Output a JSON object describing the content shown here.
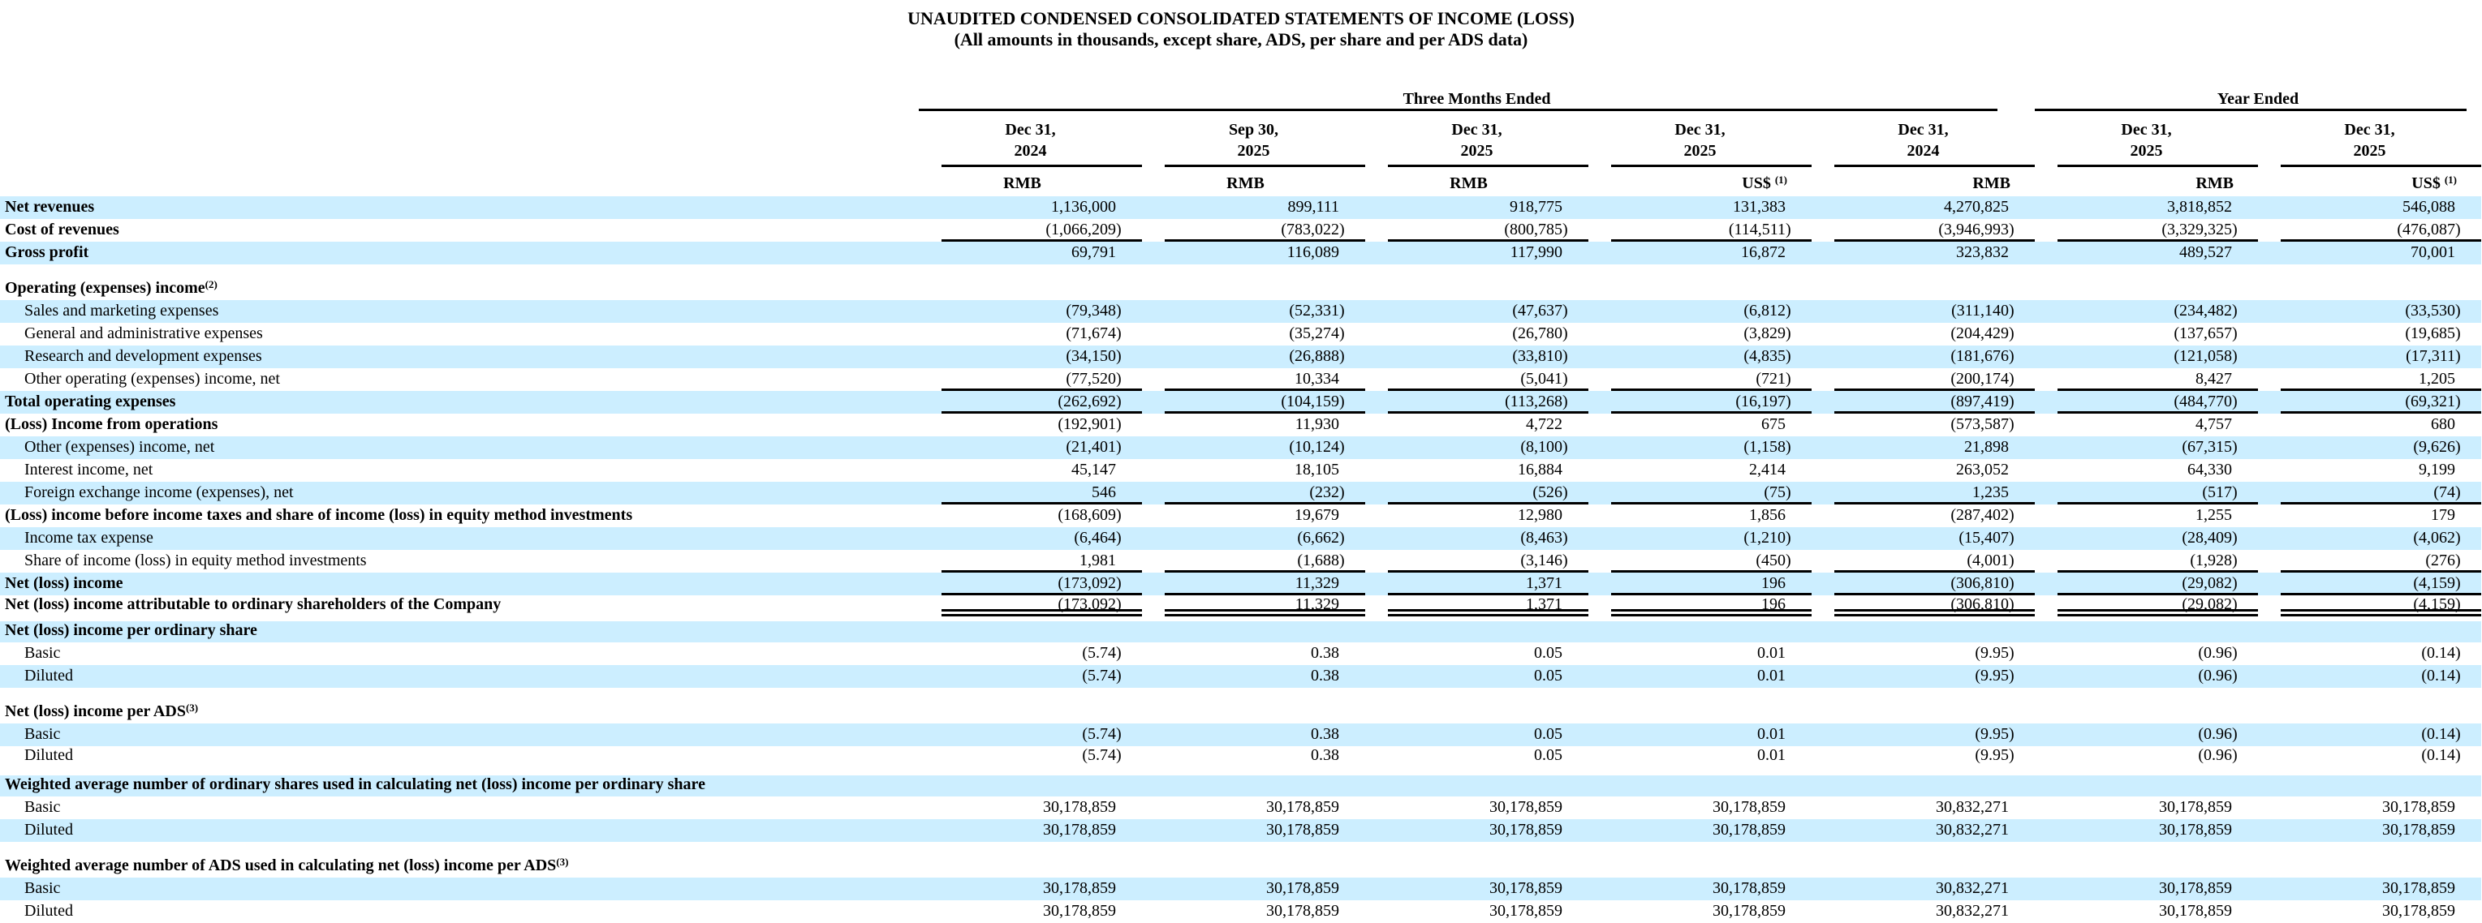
{
  "title": "UNAUDITED CONDENSED CONSOLIDATED STATEMENTS OF INCOME (LOSS)",
  "subtitle": "(All amounts in thousands, except share, ADS, per share and per ADS data)",
  "colors": {
    "row_shade": "#cceeff",
    "text": "#000000",
    "rule": "#000000"
  },
  "table": {
    "groups": [
      {
        "label": "Three Months Ended",
        "span": 5
      },
      {
        "label": "Year Ended",
        "span": 2
      }
    ],
    "columns": [
      {
        "period": "Dec 31,",
        "year": "2024",
        "unit": "RMB",
        "unit_sup": ""
      },
      {
        "period": "Sep 30,",
        "year": "2025",
        "unit": "RMB",
        "unit_sup": ""
      },
      {
        "period": "Dec 31,",
        "year": "2025",
        "unit": "RMB",
        "unit_sup": ""
      },
      {
        "period": "Dec 31,",
        "year": "2025",
        "unit": "US$",
        "unit_sup": "(1)"
      },
      {
        "period": "Dec 31,",
        "year": "2024",
        "unit": "RMB",
        "unit_sup": ""
      },
      {
        "period": "Dec 31,",
        "year": "2025",
        "unit": "RMB",
        "unit_sup": ""
      },
      {
        "period": "Dec 31,",
        "year": "2025",
        "unit": "US$",
        "unit_sup": "(1)"
      }
    ],
    "rows": [
      {
        "label": "Net revenues",
        "sup": "",
        "bold": true,
        "indent": false,
        "shaded": true,
        "tall": false,
        "gap_top": false,
        "underline": "",
        "values": [
          "1,136,000",
          "899,111",
          "918,775",
          "131,383",
          "4,270,825",
          "3,818,852",
          "546,088"
        ]
      },
      {
        "label": "Cost of revenues",
        "sup": "",
        "bold": true,
        "indent": false,
        "shaded": false,
        "tall": false,
        "gap_top": false,
        "underline": "single",
        "values": [
          "(1,066,209)",
          "(783,022)",
          "(800,785)",
          "(114,511)",
          "(3,946,993)",
          "(3,329,325)",
          "(476,087)"
        ]
      },
      {
        "label": "Gross profit",
        "sup": "",
        "bold": true,
        "indent": false,
        "shaded": true,
        "tall": false,
        "gap_top": false,
        "underline": "",
        "values": [
          "69,791",
          "116,089",
          "117,990",
          "16,872",
          "323,832",
          "489,527",
          "70,001"
        ]
      },
      {
        "label": "Operating (expenses) income",
        "sup": "(2)",
        "bold": true,
        "indent": false,
        "shaded": false,
        "tall": true,
        "gap_top": false,
        "underline": "",
        "values": []
      },
      {
        "label": "Sales and marketing expenses",
        "sup": "",
        "bold": false,
        "indent": true,
        "shaded": true,
        "tall": false,
        "gap_top": false,
        "underline": "",
        "values": [
          "(79,348)",
          "(52,331)",
          "(47,637)",
          "(6,812)",
          "(311,140)",
          "(234,482)",
          "(33,530)"
        ]
      },
      {
        "label": "General and administrative expenses",
        "sup": "",
        "bold": false,
        "indent": true,
        "shaded": false,
        "tall": false,
        "gap_top": false,
        "underline": "",
        "values": [
          "(71,674)",
          "(35,274)",
          "(26,780)",
          "(3,829)",
          "(204,429)",
          "(137,657)",
          "(19,685)"
        ]
      },
      {
        "label": "Research and development expenses",
        "sup": "",
        "bold": false,
        "indent": true,
        "shaded": true,
        "tall": false,
        "gap_top": false,
        "underline": "",
        "values": [
          "(34,150)",
          "(26,888)",
          "(33,810)",
          "(4,835)",
          "(181,676)",
          "(121,058)",
          "(17,311)"
        ]
      },
      {
        "label": "Other operating (expenses) income, net",
        "sup": "",
        "bold": false,
        "indent": true,
        "shaded": false,
        "tall": false,
        "gap_top": false,
        "underline": "single",
        "values": [
          "(77,520)",
          "10,334",
          "(5,041)",
          "(721)",
          "(200,174)",
          "8,427",
          "1,205"
        ]
      },
      {
        "label": "Total operating expenses",
        "sup": "",
        "bold": true,
        "indent": false,
        "shaded": true,
        "tall": false,
        "gap_top": false,
        "underline": "single",
        "values": [
          "(262,692)",
          "(104,159)",
          "(113,268)",
          "(16,197)",
          "(897,419)",
          "(484,770)",
          "(69,321)"
        ]
      },
      {
        "label": "(Loss) Income from operations",
        "sup": "",
        "bold": true,
        "indent": false,
        "shaded": false,
        "tall": false,
        "gap_top": false,
        "underline": "",
        "values": [
          "(192,901)",
          "11,930",
          "4,722",
          "675",
          "(573,587)",
          "4,757",
          "680"
        ]
      },
      {
        "label": "Other (expenses) income, net",
        "sup": "",
        "bold": false,
        "indent": true,
        "shaded": true,
        "tall": false,
        "gap_top": false,
        "underline": "",
        "values": [
          "(21,401)",
          "(10,124)",
          "(8,100)",
          "(1,158)",
          "21,898",
          "(67,315)",
          "(9,626)"
        ]
      },
      {
        "label": "Interest income, net",
        "sup": "",
        "bold": false,
        "indent": true,
        "shaded": false,
        "tall": false,
        "gap_top": false,
        "underline": "",
        "values": [
          "45,147",
          "18,105",
          "16,884",
          "2,414",
          "263,052",
          "64,330",
          "9,199"
        ]
      },
      {
        "label": "Foreign exchange income (expenses), net",
        "sup": "",
        "bold": false,
        "indent": true,
        "shaded": true,
        "tall": false,
        "gap_top": false,
        "underline": "single",
        "values": [
          "546",
          "(232)",
          "(526)",
          "(75)",
          "1,235",
          "(517)",
          "(74)"
        ]
      },
      {
        "label": "(Loss) income before income taxes and share of income (loss) in equity method investments",
        "sup": "",
        "bold": true,
        "indent": false,
        "shaded": false,
        "tall": false,
        "gap_top": false,
        "underline": "",
        "values": [
          "(168,609)",
          "19,679",
          "12,980",
          "1,856",
          "(287,402)",
          "1,255",
          "179"
        ]
      },
      {
        "label": "Income tax expense",
        "sup": "",
        "bold": false,
        "indent": true,
        "shaded": true,
        "tall": false,
        "gap_top": false,
        "underline": "",
        "values": [
          "(6,464)",
          "(6,662)",
          "(8,463)",
          "(1,210)",
          "(15,407)",
          "(28,409)",
          "(4,062)"
        ]
      },
      {
        "label": "Share of income (loss) in equity method investments",
        "sup": "",
        "bold": false,
        "indent": true,
        "shaded": false,
        "tall": false,
        "gap_top": false,
        "underline": "single",
        "values": [
          "1,981",
          "(1,688)",
          "(3,146)",
          "(450)",
          "(4,001)",
          "(1,928)",
          "(276)"
        ]
      },
      {
        "label": "Net (loss) income",
        "sup": "",
        "bold": true,
        "indent": false,
        "shaded": true,
        "tall": false,
        "gap_top": false,
        "underline": "single",
        "values": [
          "(173,092)",
          "11,329",
          "1,371",
          "196",
          "(306,810)",
          "(29,082)",
          "(4,159)"
        ]
      },
      {
        "label": "Net (loss) income attributable to ordinary shareholders of the Company",
        "sup": "",
        "bold": true,
        "indent": false,
        "shaded": false,
        "tall": false,
        "gap_top": false,
        "underline": "double",
        "values": [
          "(173,092)",
          "11,329",
          "1,371",
          "196",
          "(306,810)",
          "(29,082)",
          "(4,159)"
        ]
      },
      {
        "label": "Net (loss) income per ordinary share",
        "sup": "",
        "bold": true,
        "indent": false,
        "shaded": true,
        "tall": false,
        "gap_top": false,
        "underline": "",
        "values": []
      },
      {
        "label": "Basic",
        "sup": "",
        "bold": false,
        "indent": true,
        "shaded": false,
        "tall": false,
        "gap_top": false,
        "underline": "",
        "values": [
          "(5.74)",
          "0.38",
          "0.05",
          "0.01",
          "(9.95)",
          "(0.96)",
          "(0.14)"
        ]
      },
      {
        "label": "Diluted",
        "sup": "",
        "bold": false,
        "indent": true,
        "shaded": true,
        "tall": false,
        "gap_top": false,
        "underline": "",
        "values": [
          "(5.74)",
          "0.38",
          "0.05",
          "0.01",
          "(9.95)",
          "(0.96)",
          "(0.14)"
        ]
      },
      {
        "label": "Net (loss) income per ADS",
        "sup": "(3)",
        "bold": true,
        "indent": false,
        "shaded": false,
        "tall": true,
        "gap_top": false,
        "underline": "",
        "values": []
      },
      {
        "label": "Basic",
        "sup": "",
        "bold": false,
        "indent": true,
        "shaded": true,
        "tall": false,
        "gap_top": false,
        "underline": "",
        "values": [
          "(5.74)",
          "0.38",
          "0.05",
          "0.01",
          "(9.95)",
          "(0.96)",
          "(0.14)"
        ]
      },
      {
        "label": "Diluted",
        "sup": "",
        "bold": false,
        "indent": true,
        "shaded": false,
        "tall": false,
        "gap_top": false,
        "underline": "",
        "values": [
          "(5.74)",
          "0.38",
          "0.05",
          "0.01",
          "(9.95)",
          "(0.96)",
          "(0.14)"
        ]
      },
      {
        "label": "Weighted average number of ordinary shares used in calculating net (loss) income per ordinary share",
        "sup": "",
        "bold": true,
        "indent": false,
        "shaded": true,
        "tall": false,
        "gap_top": true,
        "underline": "",
        "values": []
      },
      {
        "label": "Basic",
        "sup": "",
        "bold": false,
        "indent": true,
        "shaded": false,
        "tall": false,
        "gap_top": false,
        "underline": "",
        "values": [
          "30,178,859",
          "30,178,859",
          "30,178,859",
          "30,178,859",
          "30,832,271",
          "30,178,859",
          "30,178,859"
        ]
      },
      {
        "label": "Diluted",
        "sup": "",
        "bold": false,
        "indent": true,
        "shaded": true,
        "tall": false,
        "gap_top": false,
        "underline": "",
        "values": [
          "30,178,859",
          "30,178,859",
          "30,178,859",
          "30,178,859",
          "30,832,271",
          "30,178,859",
          "30,178,859"
        ]
      },
      {
        "label": "Weighted average number of ADS used in calculating net (loss) income per ADS",
        "sup": "(3)",
        "bold": true,
        "indent": false,
        "shaded": false,
        "tall": true,
        "gap_top": false,
        "underline": "",
        "values": []
      },
      {
        "label": "Basic",
        "sup": "",
        "bold": false,
        "indent": true,
        "shaded": true,
        "tall": false,
        "gap_top": false,
        "underline": "",
        "values": [
          "30,178,859",
          "30,178,859",
          "30,178,859",
          "30,178,859",
          "30,832,271",
          "30,178,859",
          "30,178,859"
        ]
      },
      {
        "label": "Diluted",
        "sup": "",
        "bold": false,
        "indent": true,
        "shaded": false,
        "tall": false,
        "gap_top": false,
        "underline": "",
        "values": [
          "30,178,859",
          "30,178,859",
          "30,178,859",
          "30,178,859",
          "30,832,271",
          "30,178,859",
          "30,178,859"
        ]
      }
    ]
  }
}
